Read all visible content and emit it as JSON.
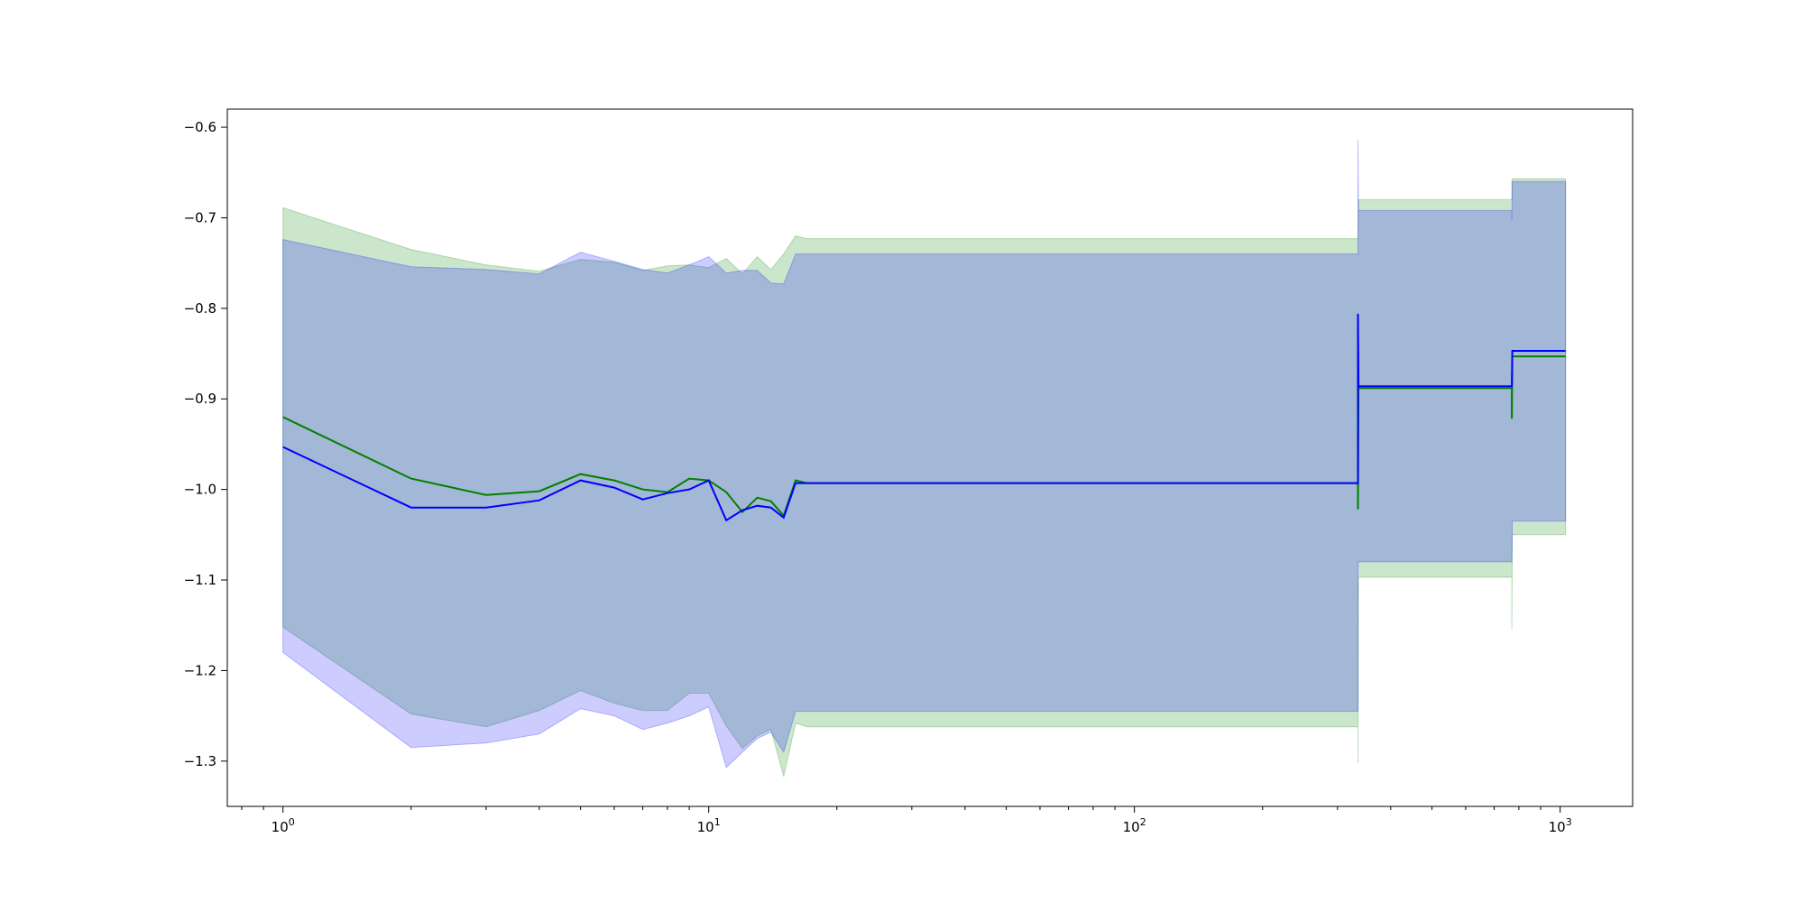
{
  "chart_data": {
    "type": "line",
    "xscale": "log",
    "xlim": [
      0.74,
      1480
    ],
    "ylim": [
      -1.35,
      -0.58
    ],
    "x_ticks": [
      {
        "value": 1,
        "base": "10",
        "exp": "0"
      },
      {
        "value": 10,
        "base": "10",
        "exp": "1"
      },
      {
        "value": 100,
        "base": "10",
        "exp": "2"
      },
      {
        "value": 1000,
        "base": "10",
        "exp": "3"
      }
    ],
    "y_ticks": [
      {
        "value": -0.6,
        "label": "−0.6"
      },
      {
        "value": -0.7,
        "label": "−0.7"
      },
      {
        "value": -0.8,
        "label": "−0.8"
      },
      {
        "value": -0.9,
        "label": "−0.9"
      },
      {
        "value": -1.0,
        "label": "−1.0"
      },
      {
        "value": -1.1,
        "label": "−1.1"
      },
      {
        "value": -1.2,
        "label": "−1.2"
      },
      {
        "value": -1.3,
        "label": "−1.3"
      }
    ],
    "grid": false,
    "legend": "none",
    "series": [
      {
        "color": "#008000",
        "band_color": "#008000",
        "band_opacity": 0.2,
        "x": [
          1,
          2,
          3,
          4,
          5,
          6,
          7,
          8,
          9,
          10,
          11,
          12,
          13,
          14,
          15,
          16,
          17,
          335,
          335,
          336,
          770,
          770,
          772,
          1030
        ],
        "mean": [
          -0.92,
          -0.988,
          -1.006,
          -1.002,
          -0.983,
          -0.99,
          -1.0,
          -1.003,
          -0.988,
          -0.99,
          -1.003,
          -1.025,
          -1.009,
          -1.013,
          -1.029,
          -0.99,
          -0.993,
          -0.993,
          -1.022,
          -0.888,
          -0.888,
          -0.922,
          -0.853,
          -0.853
        ],
        "upper": [
          -0.689,
          -0.735,
          -0.752,
          -0.759,
          -0.746,
          -0.749,
          -0.758,
          -0.753,
          -0.752,
          -0.755,
          -0.745,
          -0.762,
          -0.743,
          -0.757,
          -0.74,
          -0.72,
          -0.723,
          -0.723,
          -0.722,
          -0.68,
          -0.68,
          -0.66,
          -0.657,
          -0.657
        ],
        "lower": [
          -1.152,
          -1.248,
          -1.262,
          -1.244,
          -1.222,
          -1.236,
          -1.244,
          -1.244,
          -1.225,
          -1.225,
          -1.261,
          -1.286,
          -1.272,
          -1.265,
          -1.317,
          -1.258,
          -1.262,
          -1.262,
          -1.302,
          -1.097,
          -1.097,
          -1.155,
          -1.05,
          -1.05
        ]
      },
      {
        "color": "#0000ff",
        "band_color": "#0000ff",
        "band_opacity": 0.2,
        "x": [
          1,
          2,
          3,
          4,
          5,
          6,
          7,
          8,
          9,
          10,
          11,
          12,
          13,
          14,
          15,
          16,
          17,
          335,
          335,
          336,
          770,
          770,
          772,
          1030
        ],
        "mean": [
          -0.953,
          -1.02,
          -1.02,
          -1.012,
          -0.99,
          -0.998,
          -1.011,
          -1.004,
          -1.0,
          -0.99,
          -1.034,
          -1.023,
          -1.018,
          -1.02,
          -1.031,
          -0.993,
          -0.993,
          -0.993,
          -0.806,
          -0.886,
          -0.886,
          -0.886,
          -0.847,
          -0.847
        ],
        "upper": [
          -0.724,
          -0.754,
          -0.757,
          -0.762,
          -0.738,
          -0.748,
          -0.757,
          -0.761,
          -0.752,
          -0.743,
          -0.761,
          -0.758,
          -0.758,
          -0.772,
          -0.773,
          -0.74,
          -0.74,
          -0.74,
          -0.614,
          -0.692,
          -0.692,
          -0.703,
          -0.66,
          -0.66
        ],
        "lower": [
          -1.18,
          -1.285,
          -1.28,
          -1.27,
          -1.242,
          -1.25,
          -1.265,
          -1.258,
          -1.25,
          -1.24,
          -1.307,
          -1.29,
          -1.275,
          -1.268,
          -1.29,
          -1.245,
          -1.245,
          -1.245,
          -1.09,
          -1.08,
          -1.08,
          -1.08,
          -1.035,
          -1.035
        ]
      }
    ]
  }
}
